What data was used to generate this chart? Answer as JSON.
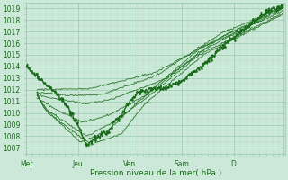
{
  "xlabel": "Pression niveau de la mer( hPa )",
  "xlim": [
    0,
    120
  ],
  "ylim": [
    1006.5,
    1019.5
  ],
  "yticks": [
    1007,
    1008,
    1009,
    1010,
    1011,
    1012,
    1013,
    1014,
    1015,
    1016,
    1017,
    1018,
    1019
  ],
  "xtick_positions": [
    0,
    24,
    48,
    72,
    96,
    119
  ],
  "xtick_labels": [
    "Mer",
    "Jeu",
    "Ven",
    "Sam",
    "D",
    ""
  ],
  "bg_color": "#cce8d8",
  "grid_color": "#99ccb0",
  "line_color": "#1a6b1a",
  "font_color": "#1a6b1a"
}
